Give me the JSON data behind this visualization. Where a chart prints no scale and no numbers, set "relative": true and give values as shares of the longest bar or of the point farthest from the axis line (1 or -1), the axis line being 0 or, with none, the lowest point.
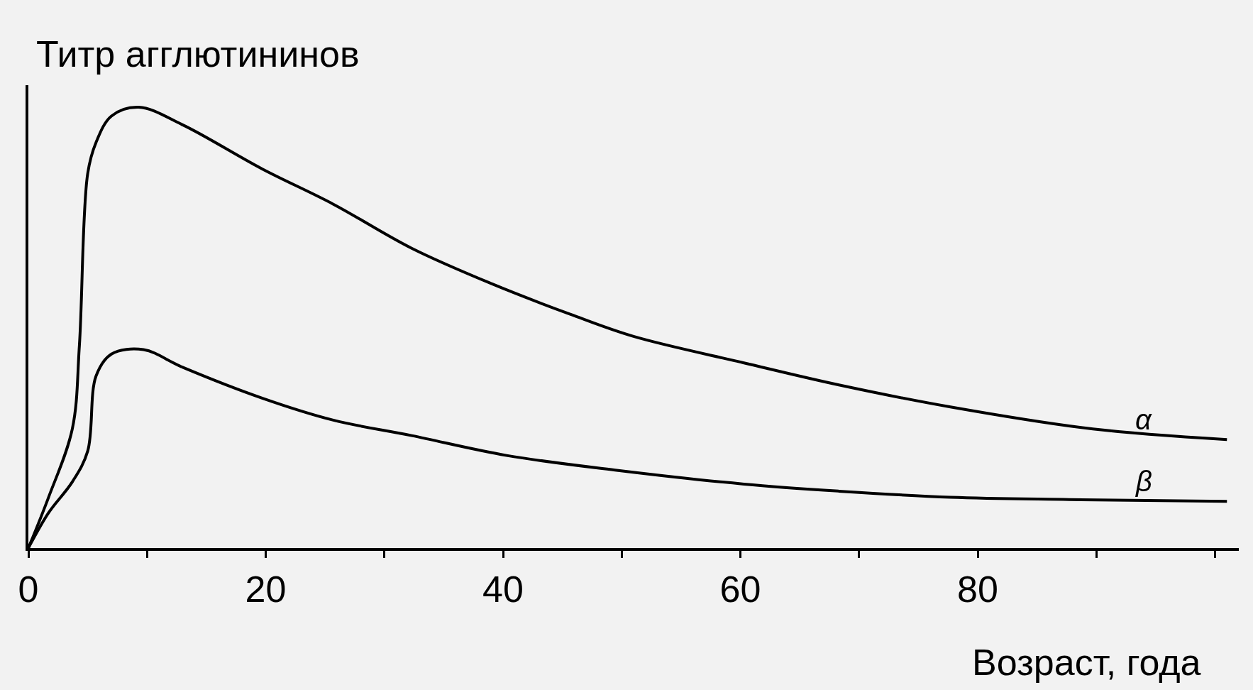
{
  "chart_data": {
    "type": "line",
    "relative": true,
    "ylabel": "Титр агглютининов",
    "xlabel": "Возраст, года",
    "xlim": [
      0,
      102
    ],
    "xticks": [
      0,
      {
        "value": 10,
        "label": null
      },
      20,
      {
        "value": 30,
        "label": null
      },
      40,
      {
        "value": 50,
        "label": null
      },
      60,
      {
        "value": 70,
        "label": null
      },
      80,
      {
        "value": 90,
        "label": null
      },
      {
        "value": 100,
        "label": null
      }
    ],
    "series": [
      {
        "name": "α",
        "color": "#000000",
        "x": [
          0,
          1.7,
          3.7,
          4.3,
          5,
          5.7,
          7,
          9.3,
          13,
          19.7,
          25.7,
          32.3,
          39,
          45.7,
          51,
          60.3,
          68.3,
          77.7,
          89.7,
          101
        ],
        "values": [
          0,
          0.115,
          0.27,
          0.46,
          0.85,
          0.92,
          0.98,
          1,
          0.96,
          0.86,
          0.78,
          0.68,
          0.6,
          0.53,
          0.48,
          0.42,
          0.37,
          0.32,
          0.27,
          0.246
        ]
      },
      {
        "name": "β",
        "color": "#000000",
        "x": [
          0,
          1.7,
          3.7,
          5,
          5.7,
          7,
          9.7,
          13,
          19.7,
          25.7,
          32.3,
          40.3,
          49.7,
          60.3,
          68.3,
          77.7,
          87.7,
          101
        ],
        "values": [
          0,
          0.08,
          0.15,
          0.22,
          0.39,
          0.44,
          0.45,
          0.41,
          0.34,
          0.29,
          0.255,
          0.21,
          0.176,
          0.145,
          0.129,
          0.115,
          0.11,
          0.106
        ]
      }
    ],
    "grid": false,
    "legend": false,
    "marker": "none",
    "line_style": "solid"
  }
}
